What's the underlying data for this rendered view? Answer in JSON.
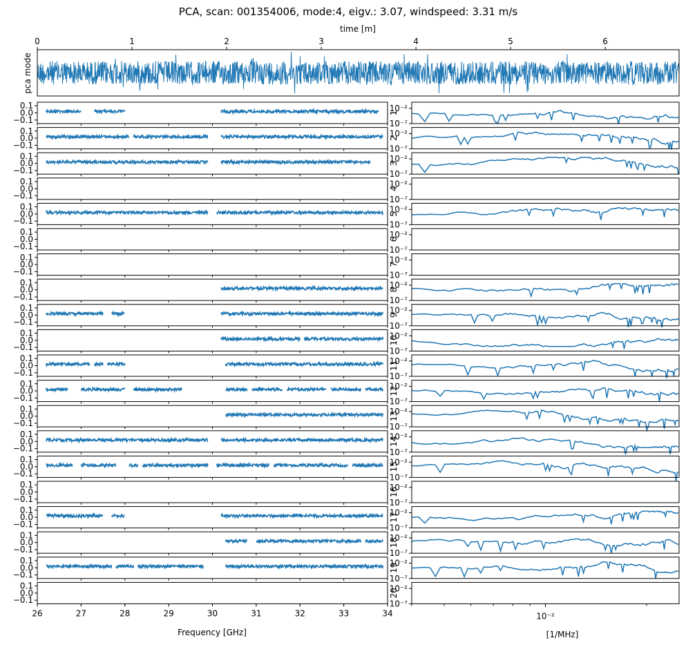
{
  "figure": {
    "title": "PCA, scan: 001354006, mode:4, eigv.: 3.07, windspeed: 3.31 m/s"
  },
  "chart_data": [
    {
      "id": "pca-mode-timeseries",
      "type": "line",
      "title": "",
      "xlabel": "time [m]",
      "ylabel": "pca mode",
      "xlim": [
        0,
        6.78
      ],
      "xticks": [
        "0",
        "1",
        "2",
        "3",
        "4",
        "5",
        "6"
      ],
      "color": "#1f77b4",
      "series": [
        {
          "name": "pca mode",
          "description": "dense noise time series of approx. constant amplitude"
        }
      ]
    },
    {
      "id": "frequency-panels",
      "type": "scatter",
      "xlabel": "Frequency [GHz]",
      "xlim": [
        26,
        34
      ],
      "xticks": [
        "26",
        "27",
        "28",
        "29",
        "30",
        "31",
        "32",
        "33",
        "34"
      ],
      "ylim": [
        -0.15,
        0.15
      ],
      "yticks": [
        "0.1",
        "0.0",
        "−0.1"
      ],
      "color": "#1f77b4",
      "panels": [
        {
          "label": "1",
          "segments": [
            [
              26.2,
              27.0
            ],
            [
              27.3,
              27.6
            ],
            [
              27.6,
              28.0
            ],
            [
              30.2,
              33.8
            ]
          ]
        },
        {
          "label": "2",
          "segments": [
            [
              26.2,
              27.4
            ],
            [
              27.4,
              28.1
            ],
            [
              28.2,
              29.0
            ],
            [
              29.0,
              29.9
            ],
            [
              30.2,
              33.9
            ]
          ]
        },
        {
          "label": "3",
          "segments": [
            [
              26.2,
              29.9
            ],
            [
              30.2,
              33.6
            ]
          ]
        },
        {
          "label": "4",
          "segments": []
        },
        {
          "label": "5",
          "segments": [
            [
              26.2,
              29.9
            ],
            [
              30.1,
              33.9
            ]
          ]
        },
        {
          "label": "6",
          "segments": []
        },
        {
          "label": "7",
          "segments": []
        },
        {
          "label": "8",
          "segments": [
            [
              30.2,
              33.9
            ]
          ]
        },
        {
          "label": "9",
          "segments": [
            [
              26.2,
              27.5
            ],
            [
              27.7,
              28.0
            ],
            [
              30.2,
              31.0
            ],
            [
              31.0,
              33.9
            ]
          ]
        },
        {
          "label": "10",
          "segments": [
            [
              30.2,
              32.0
            ],
            [
              32.1,
              33.9
            ]
          ]
        },
        {
          "label": "11",
          "segments": [
            [
              26.2,
              27.2
            ],
            [
              27.3,
              27.5
            ],
            [
              27.6,
              28.0
            ],
            [
              30.3,
              33.9
            ]
          ]
        },
        {
          "label": "12",
          "segments": [
            [
              26.2,
              26.7
            ],
            [
              27.0,
              28.0
            ],
            [
              28.2,
              29.3
            ],
            [
              30.3,
              30.8
            ],
            [
              30.9,
              31.6
            ],
            [
              31.7,
              32.6
            ],
            [
              32.7,
              33.4
            ],
            [
              33.5,
              33.9
            ]
          ]
        },
        {
          "label": "13",
          "segments": [
            [
              30.3,
              33.9
            ]
          ]
        },
        {
          "label": "14",
          "segments": [
            [
              26.2,
              29.9
            ],
            [
              30.2,
              33.9
            ]
          ]
        },
        {
          "label": "15",
          "segments": [
            [
              26.2,
              26.8
            ],
            [
              27.0,
              27.8
            ],
            [
              28.1,
              28.3
            ],
            [
              28.4,
              29.9
            ],
            [
              30.1,
              31.3
            ],
            [
              31.4,
              33.1
            ],
            [
              33.2,
              33.9
            ]
          ]
        },
        {
          "label": "16",
          "segments": []
        },
        {
          "label": "17",
          "segments": [
            [
              26.2,
              27.5
            ],
            [
              27.7,
              28.0
            ],
            [
              30.2,
              33.9
            ]
          ]
        },
        {
          "label": "18",
          "segments": [
            [
              30.3,
              30.8
            ],
            [
              31.0,
              33.4
            ],
            [
              33.5,
              33.9
            ]
          ]
        },
        {
          "label": "19",
          "segments": [
            [
              26.2,
              27.7
            ],
            [
              27.8,
              28.2
            ],
            [
              28.3,
              29.8
            ],
            [
              30.3,
              33.9
            ]
          ]
        },
        {
          "label": "20",
          "segments": []
        }
      ]
    },
    {
      "id": "spectrum-panels",
      "type": "line",
      "xlabel": "[1/MHz]",
      "xscale": "log",
      "yscale": "log",
      "xlim": [
        0.004,
        0.025
      ],
      "xticks": [
        "10⁻²"
      ],
      "ylim": [
        1e-07,
        1
      ],
      "yticks": [
        "10⁻²",
        "10⁻⁷"
      ],
      "color": "#1f77b4",
      "panels": [
        {
          "label": "1",
          "has_data": true
        },
        {
          "label": "2",
          "has_data": true
        },
        {
          "label": "3",
          "has_data": true
        },
        {
          "label": "4",
          "has_data": false
        },
        {
          "label": "5",
          "has_data": true
        },
        {
          "label": "6",
          "has_data": false
        },
        {
          "label": "7",
          "has_data": false
        },
        {
          "label": "8",
          "has_data": true
        },
        {
          "label": "9",
          "has_data": true
        },
        {
          "label": "10",
          "has_data": true
        },
        {
          "label": "11",
          "has_data": true
        },
        {
          "label": "12",
          "has_data": true
        },
        {
          "label": "13",
          "has_data": true
        },
        {
          "label": "14",
          "has_data": true
        },
        {
          "label": "15",
          "has_data": true
        },
        {
          "label": "16",
          "has_data": false
        },
        {
          "label": "17",
          "has_data": true
        },
        {
          "label": "18",
          "has_data": true
        },
        {
          "label": "19",
          "has_data": true
        },
        {
          "label": "20",
          "has_data": false
        }
      ]
    }
  ]
}
